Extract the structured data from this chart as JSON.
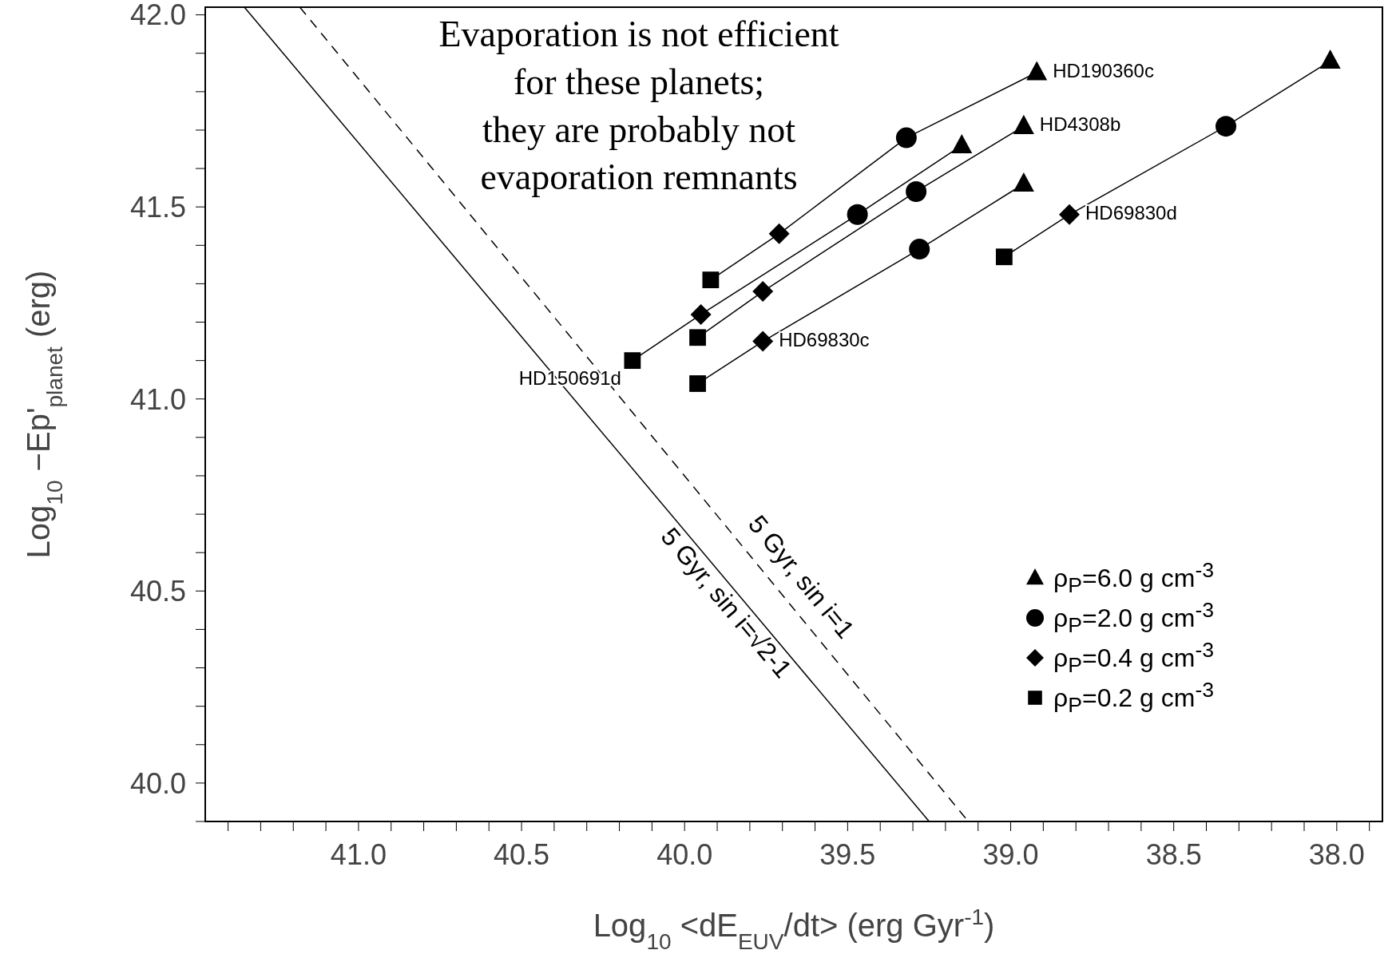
{
  "chart_data": {
    "type": "scatter",
    "xlabel": "Log$_{10}$ <dE$_{EUV}$/dt> (erg Gyr$^{-1}$)",
    "ylabel": "Log$_{10}$ −Ep'$_{planet}$ (erg)",
    "xlim": [
      41.47,
      37.86
    ],
    "ylim": [
      39.9,
      42.02
    ],
    "xticks": [
      {
        "value": 41.4,
        "label": null
      },
      {
        "value": 41.3,
        "label": null
      },
      {
        "value": 41.2,
        "label": null
      },
      {
        "value": 41.1,
        "label": null
      },
      {
        "value": 41,
        "label": "41.0"
      },
      {
        "value": 40.9,
        "label": null
      },
      {
        "value": 40.8,
        "label": null
      },
      {
        "value": 40.7,
        "label": null
      },
      {
        "value": 40.6,
        "label": null
      },
      {
        "value": 40.5,
        "label": "40.5"
      },
      {
        "value": 40.4,
        "label": null
      },
      {
        "value": 40.3,
        "label": null
      },
      {
        "value": 40.2,
        "label": null
      },
      {
        "value": 40.1,
        "label": null
      },
      {
        "value": 40,
        "label": "40.0"
      },
      {
        "value": 39.9,
        "label": null
      },
      {
        "value": 39.8,
        "label": null
      },
      {
        "value": 39.7,
        "label": null
      },
      {
        "value": 39.6,
        "label": null
      },
      {
        "value": 39.5,
        "label": "39.5"
      },
      {
        "value": 39.4,
        "label": null
      },
      {
        "value": 39.3,
        "label": null
      },
      {
        "value": 39.2,
        "label": null
      },
      {
        "value": 39.1,
        "label": null
      },
      {
        "value": 39,
        "label": "39.0"
      },
      {
        "value": 38.9,
        "label": null
      },
      {
        "value": 38.8,
        "label": null
      },
      {
        "value": 38.7,
        "label": null
      },
      {
        "value": 38.6,
        "label": null
      },
      {
        "value": 38.5,
        "label": "38.5"
      },
      {
        "value": 38.4,
        "label": null
      },
      {
        "value": 38.3,
        "label": null
      },
      {
        "value": 38.2,
        "label": null
      },
      {
        "value": 38.1,
        "label": null
      },
      {
        "value": 38,
        "label": "38.0"
      },
      {
        "value": 37.9,
        "label": null
      }
    ],
    "yticks": [
      {
        "value": 39.9,
        "label": null
      },
      {
        "value": 40,
        "label": "40.0"
      },
      {
        "value": 40.1,
        "label": null
      },
      {
        "value": 40.2,
        "label": null
      },
      {
        "value": 40.3,
        "label": null
      },
      {
        "value": 40.4,
        "label": null
      },
      {
        "value": 40.5,
        "label": "40.5"
      },
      {
        "value": 40.6,
        "label": null
      },
      {
        "value": 40.7,
        "label": null
      },
      {
        "value": 40.8,
        "label": null
      },
      {
        "value": 40.9,
        "label": null
      },
      {
        "value": 41,
        "label": "41.0"
      },
      {
        "value": 41.1,
        "label": null
      },
      {
        "value": 41.2,
        "label": null
      },
      {
        "value": 41.3,
        "label": null
      },
      {
        "value": 41.4,
        "label": null
      },
      {
        "value": 41.5,
        "label": "41.5"
      },
      {
        "value": 41.6,
        "label": null
      },
      {
        "value": 41.7,
        "label": null
      },
      {
        "value": 41.8,
        "label": null
      },
      {
        "value": 41.9,
        "label": null
      },
      {
        "value": 42,
        "label": "42.0"
      }
    ],
    "legend": "bottom right",
    "annotations": [
      "Evaporation is not efficient\nfor these planets;\nthey are probably not\nevaporation remnants",
      {
        "text": "HD190360c",
        "x": 38.92,
        "y": 41.85
      },
      {
        "text": "HD4308b",
        "x": 38.96,
        "y": 41.71
      },
      {
        "text": "HD69830d",
        "x": 38.82,
        "y": 41.48
      },
      {
        "text": "HD69830c",
        "x": 39.76,
        "y": 41.15
      },
      {
        "text": "HD150691d",
        "x": 40.16,
        "y": 41.1
      }
    ],
    "series": [
      {
        "type": "line",
        "marker": "none",
        "line_style": "solid",
        "color": "#000000",
        "x": [
          39.92,
          39.71,
          39.32,
          38.92
        ],
        "values": [
          41.31,
          41.43,
          41.68,
          41.85
        ]
      },
      {
        "type": "line",
        "marker": "none",
        "line_style": "solid",
        "color": "#000000",
        "x": [
          40.16,
          39.95,
          39.47,
          39.15
        ],
        "values": [
          41.1,
          41.22,
          41.48,
          41.66
        ]
      },
      {
        "type": "line",
        "marker": "none",
        "line_style": "solid",
        "color": "#000000",
        "x": [
          39.96,
          39.76,
          39.29,
          38.96
        ],
        "values": [
          41.16,
          41.28,
          41.54,
          41.71
        ]
      },
      {
        "type": "line",
        "marker": "none",
        "line_style": "solid",
        "color": "#000000",
        "x": [
          39.96,
          39.76,
          39.28,
          38.96
        ],
        "values": [
          41.04,
          41.15,
          41.39,
          41.56
        ]
      },
      {
        "type": "line",
        "marker": "none",
        "line_style": "solid",
        "color": "#000000",
        "x": [
          39.02,
          38.82,
          38.34,
          38.02
        ],
        "values": [
          41.37,
          41.48,
          41.71,
          41.88
        ]
      },
      {
        "name": "5 Gyr, sin i=√2-1",
        "type": "line",
        "marker": "none",
        "line_style": "solid",
        "color": "#000000",
        "x": [
          41.35,
          39.25
        ],
        "values": [
          42.02,
          39.9
        ]
      },
      {
        "name": "5 Gyr, sin i=1",
        "type": "line",
        "marker": "none",
        "line_style": "dashed",
        "color": "#000000",
        "x": [
          41.18,
          39.13
        ],
        "values": [
          42.02,
          39.9
        ]
      },
      {
        "name": "ρ$_{P}$=6.0 g cm$^{-3}$",
        "marker": "triangle",
        "color": "#000000",
        "x": [
          38.92,
          39.15,
          38.96,
          38.96,
          38.02
        ],
        "values": [
          41.85,
          41.66,
          41.71,
          41.56,
          41.88
        ]
      },
      {
        "name": "ρ$_{P}$=2.0 g cm$^{-3}$",
        "marker": "circle",
        "color": "#000000",
        "x": [
          39.32,
          39.47,
          39.29,
          39.28,
          38.34
        ],
        "values": [
          41.68,
          41.48,
          41.54,
          41.39,
          41.71
        ]
      },
      {
        "name": "ρ$_{P}$=0.4 g cm$^{-3}$",
        "marker": "diamond",
        "color": "#000000",
        "x": [
          39.71,
          39.95,
          39.76,
          39.76,
          38.82
        ],
        "values": [
          41.43,
          41.22,
          41.28,
          41.15,
          41.48
        ]
      },
      {
        "name": "ρ$_{P}$=0.2 g cm$^{-3}$",
        "marker": "square",
        "color": "#000000",
        "x": [
          39.92,
          40.16,
          39.96,
          39.96,
          39.02
        ],
        "values": [
          41.31,
          41.1,
          41.16,
          41.04,
          41.37
        ]
      }
    ]
  }
}
